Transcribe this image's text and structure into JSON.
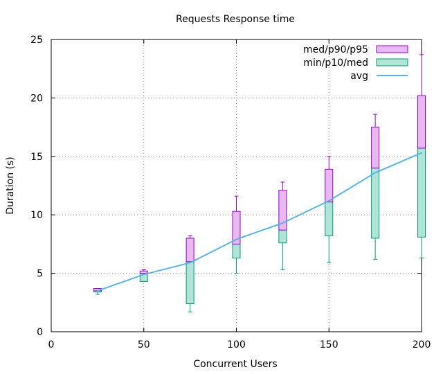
{
  "chart_data": {
    "type": "box",
    "title": "Requests Response time",
    "xlabel": "Concurrent Users",
    "ylabel": "Duration (s)",
    "xlim": [
      0,
      200
    ],
    "ylim": [
      0,
      25
    ],
    "xticks": [
      0,
      50,
      100,
      150,
      200
    ],
    "yticks": [
      0,
      5,
      10,
      15,
      20,
      25
    ],
    "grid": true,
    "legend_position": "top-right",
    "colors": {
      "upper_box": "#9400d3",
      "upper_fill": "#e8b8f0",
      "lower_box": "#009e73",
      "lower_fill": "#b0e4d6",
      "avg_line": "#56b4e9",
      "grid": "#a0a0a0"
    },
    "legend": [
      {
        "label": "med/p90/p95",
        "kind": "upper"
      },
      {
        "label": "min/p10/med",
        "kind": "lower"
      },
      {
        "label": "avg",
        "kind": "line"
      }
    ],
    "series": [
      {
        "x": 25,
        "min": 3.2,
        "p10": 3.4,
        "med": 3.5,
        "p90": 3.7,
        "p95": 3.7,
        "avg": 3.5
      },
      {
        "x": 50,
        "min": 4.3,
        "p10": 4.3,
        "med": 5.0,
        "p90": 5.2,
        "p95": 5.3,
        "avg": 4.9
      },
      {
        "x": 75,
        "min": 1.7,
        "p10": 2.4,
        "med": 6.0,
        "p90": 8.0,
        "p95": 8.2,
        "avg": 5.9
      },
      {
        "x": 100,
        "min": 5.0,
        "p10": 6.3,
        "med": 7.5,
        "p90": 10.3,
        "p95": 11.6,
        "avg": 7.9
      },
      {
        "x": 125,
        "min": 5.3,
        "p10": 7.6,
        "med": 8.7,
        "p90": 12.1,
        "p95": 12.8,
        "avg": 9.3
      },
      {
        "x": 150,
        "min": 5.9,
        "p10": 8.2,
        "med": 11.1,
        "p90": 13.9,
        "p95": 15.0,
        "avg": 11.2
      },
      {
        "x": 175,
        "min": 6.2,
        "p10": 8.0,
        "med": 14.0,
        "p90": 17.5,
        "p95": 18.6,
        "avg": 13.6
      },
      {
        "x": 200,
        "min": 6.3,
        "p10": 8.1,
        "med": 15.7,
        "p90": 20.2,
        "p95": 23.7,
        "avg": 15.3
      }
    ]
  }
}
